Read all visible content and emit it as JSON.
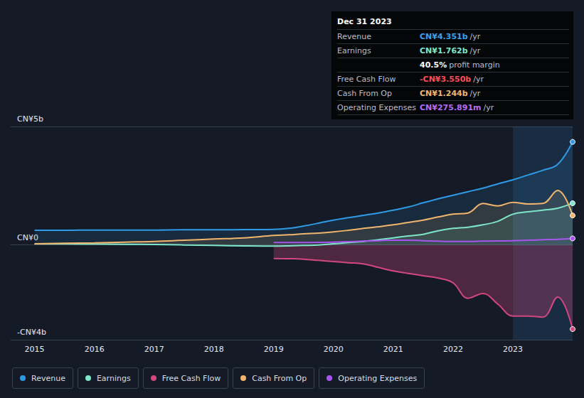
{
  "chart_data": {
    "type": "line",
    "x": [
      2015,
      2015.5,
      2016,
      2016.5,
      2017,
      2017.5,
      2018,
      2018.5,
      2019,
      2019.25,
      2019.5,
      2019.75,
      2020,
      2020.25,
      2020.5,
      2020.75,
      2021,
      2021.25,
      2021.5,
      2021.75,
      2022,
      2022.25,
      2022.5,
      2022.75,
      2023,
      2023.25,
      2023.5,
      2023.75,
      2024
    ],
    "series": [
      {
        "name": "Revenue",
        "color": "#2f9ae6",
        "values": [
          0.62,
          0.62,
          0.63,
          0.63,
          0.63,
          0.64,
          0.64,
          0.65,
          0.66,
          0.7,
          0.8,
          0.92,
          1.05,
          1.15,
          1.25,
          1.35,
          1.47,
          1.6,
          1.78,
          1.95,
          2.1,
          2.25,
          2.4,
          2.58,
          2.75,
          2.95,
          3.15,
          3.4,
          4.351
        ]
      },
      {
        "name": "Earnings",
        "color": "#7ee6c8",
        "values": [
          0.05,
          0.05,
          0.04,
          0.03,
          0.02,
          0.0,
          -0.02,
          -0.04,
          -0.05,
          -0.04,
          -0.02,
          0.0,
          0.05,
          0.1,
          0.15,
          0.22,
          0.3,
          0.38,
          0.45,
          0.6,
          0.7,
          0.75,
          0.85,
          1.0,
          1.3,
          1.4,
          1.47,
          1.55,
          1.762
        ]
      },
      {
        "name": "Free Cash Flow",
        "color": "#d3477f",
        "values": [
          null,
          null,
          null,
          null,
          null,
          null,
          null,
          null,
          -0.57,
          -0.58,
          -0.6,
          -0.65,
          -0.7,
          -0.75,
          -0.8,
          -0.95,
          -1.1,
          -1.2,
          -1.3,
          -1.4,
          -1.6,
          -2.25,
          -2.05,
          -2.5,
          -3.0,
          -3.0,
          -3.05,
          -2.2,
          -3.55
        ]
      },
      {
        "name": "Cash From Op",
        "color": "#f2b56c",
        "values": [
          0.05,
          0.07,
          0.09,
          0.12,
          0.15,
          0.2,
          0.25,
          0.3,
          0.4,
          0.43,
          0.47,
          0.5,
          0.55,
          0.62,
          0.7,
          0.77,
          0.85,
          0.95,
          1.05,
          1.18,
          1.3,
          1.35,
          1.75,
          1.65,
          1.8,
          1.73,
          1.75,
          2.3,
          1.244
        ]
      },
      {
        "name": "Operating Expenses",
        "color": "#a855f0",
        "values": [
          null,
          null,
          null,
          null,
          null,
          null,
          null,
          null,
          0.1,
          0.1,
          0.1,
          0.11,
          0.12,
          0.14,
          0.16,
          0.18,
          0.2,
          0.2,
          0.18,
          0.16,
          0.15,
          0.15,
          0.16,
          0.17,
          0.18,
          0.2,
          0.22,
          0.24,
          0.276
        ]
      }
    ],
    "xlim": [
      2014.6,
      2024
    ],
    "xticks": [
      2015,
      2016,
      2017,
      2018,
      2019,
      2020,
      2021,
      2022,
      2023
    ],
    "ylim": [
      -4,
      5
    ],
    "yticks": [
      {
        "value": -4,
        "label": "-CN¥4b"
      },
      {
        "value": 0,
        "label": "CN¥0"
      },
      {
        "value": 5,
        "label": "CN¥5b"
      }
    ],
    "grid": true,
    "info_box": {
      "title": "Dec 31 2023",
      "rows": [
        {
          "label": "Revenue",
          "value": "CN¥4.351b",
          "unit": "/yr",
          "color": "#3aa0f0"
        },
        {
          "label": "Earnings",
          "value": "CN¥1.762b",
          "unit": "/yr",
          "color": "#7ee6c8"
        },
        {
          "value": "40.5%",
          "unit": "profit margin",
          "color": "#ffffff"
        },
        {
          "label": "Free Cash Flow",
          "value": "-CN¥3.550b",
          "unit": "/yr",
          "color": "#ff4d55"
        },
        {
          "label": "Cash From Op",
          "value": "CN¥1.244b",
          "unit": "/yr",
          "color": "#f2b56c"
        },
        {
          "label": "Operating Expenses",
          "value": "CN¥275.891m",
          "unit": "/yr",
          "color": "#b46cf5"
        }
      ]
    }
  }
}
